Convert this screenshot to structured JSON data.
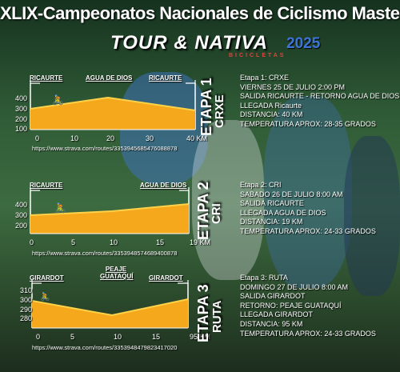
{
  "header": {
    "title": "XLIX-Campeonatos Nacionales de Ciclismo Master",
    "brand": "TOUR & NATIVA",
    "brand_sub": "BICICLETAS",
    "year": "2025"
  },
  "colors": {
    "profile_fill": "#f5a81c",
    "profile_top": "#ffd24a",
    "year": "#3d74d8",
    "accent_red": "#e8413b"
  },
  "stages": [
    {
      "etapa": "ETAPA 1",
      "type": "CRXE",
      "points": {
        "start": "RICAURTE",
        "mid": "AGUA DE DIOS",
        "end": "RICAURTE"
      },
      "y_ticks": [
        "400",
        "300",
        "200",
        "100"
      ],
      "x_ticks": [
        "0",
        "10",
        "20",
        "30",
        "40 KM"
      ],
      "url": "https://www.strava.com/routes/3353945685476088878",
      "info": [
        "Etapa 1: CRXE",
        "VIERNES 25 DE JULIO  2:00 PM",
        "SALIDA RICAURTE - RETORNO AGUA DE DIOS",
        "LLEGADA Ricaurte",
        "DISTANCIA: 40 KM",
        "TEMPERATURA APROX: 28-35 GRADOS"
      ]
    },
    {
      "etapa": "ETAPA 2",
      "type": "CRI",
      "points": {
        "start": "RICAURTE",
        "end": "AGUA DE DIOS"
      },
      "y_ticks": [
        "400",
        "300",
        "200"
      ],
      "x_ticks": [
        "0",
        "5",
        "10",
        "15",
        "19 KM"
      ],
      "url": "https://www.strava.com/routes/3353948574689400878",
      "info": [
        "Etapa 2: CRI",
        "SABADO 26 DE JULIO 8:00 AM",
        "SALIDA RICAURTE",
        "LLEGADA AGUA DE DIOS",
        "DISTANCIA: 19 KM",
        "TEMPERATURA APROX: 24-33 GRADOS"
      ]
    },
    {
      "etapa": "ETAPA 3",
      "type": "RUTA",
      "points": {
        "start": "GIRARDOT",
        "mid": "PEAJE GUATAQUÍ",
        "end": "GIRARDOT"
      },
      "y_ticks": [
        "310",
        "300",
        "290",
        "280"
      ],
      "x_ticks": [
        "0",
        "5",
        "10",
        "15",
        "95 KM"
      ],
      "url": "https://www.strava.com/routes/3353948479823417020",
      "info": [
        "Etapa 3: RUTA",
        "DOMINGO 27 DE JULIO 8:00 AM",
        "SALIDA GIRARDOT",
        "RETORNO: PEAJE GUATAQUÍ",
        "LLEGADA GIRARDOT",
        "DISTANCIA: 95 KM",
        "TEMPERATURA APROX: 24-33 GRADOS"
      ]
    }
  ]
}
